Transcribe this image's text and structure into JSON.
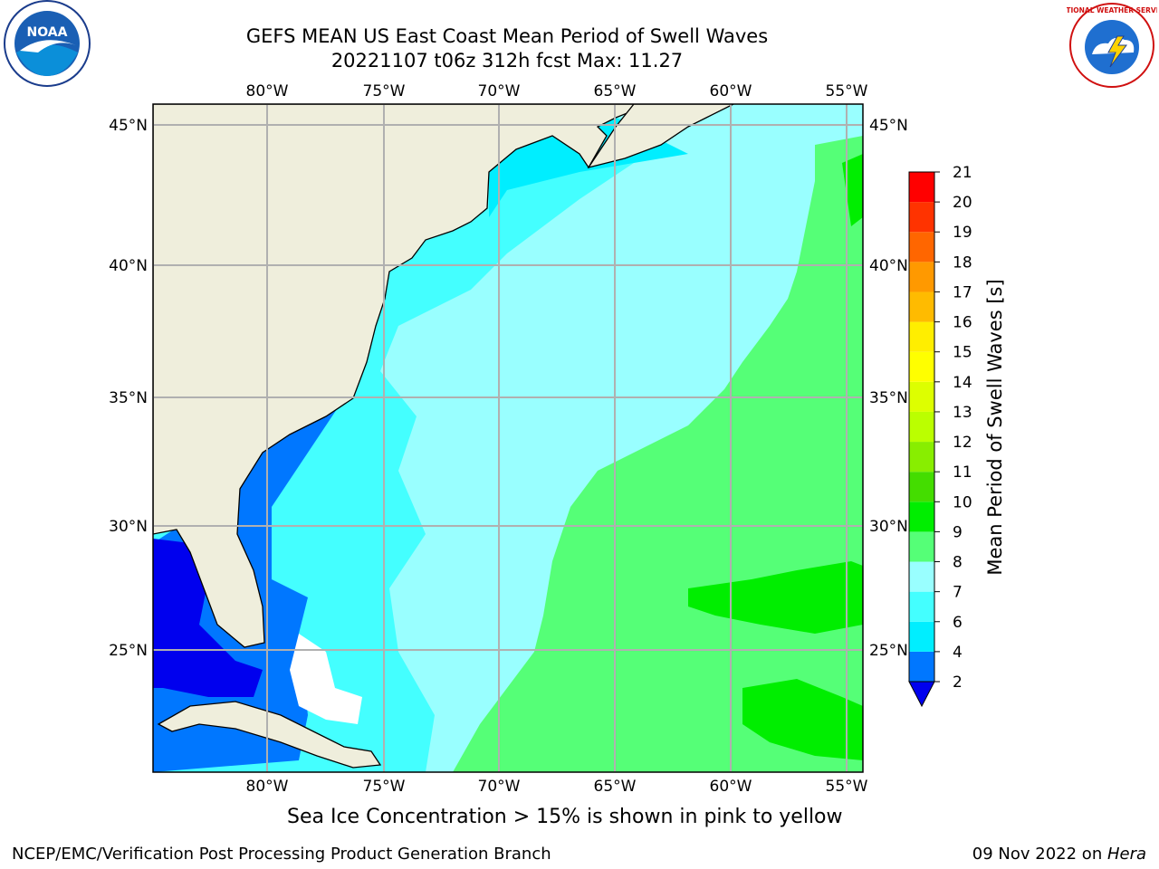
{
  "title": {
    "line1": "GEFS MEAN US East Coast Mean Period of Swell Waves",
    "line2": "20221107 t06z 312h fcst   Max: 11.27"
  },
  "logos": {
    "left": "noaa-logo",
    "right": "national-weather-service-logo",
    "left_text": "NOAA",
    "right_text": "NATIONAL WEATHER SERVICE"
  },
  "map": {
    "type": "contour-map",
    "lon_labels": [
      "80°W",
      "75°W",
      "70°W",
      "65°W",
      "60°W",
      "55°W"
    ],
    "lat_labels": [
      "45°N",
      "40°N",
      "35°N",
      "30°N",
      "25°N"
    ],
    "land_color": "#efeedc",
    "grid_color": "#b0b0b0"
  },
  "colorbar": {
    "label": "Mean Period of Swell Waves [s]",
    "ticks": [
      "2",
      "4",
      "6",
      "7",
      "8",
      "9",
      "10",
      "11",
      "12",
      "13",
      "14",
      "15",
      "16",
      "17",
      "18",
      "19",
      "20",
      "21"
    ],
    "colors": [
      "#0000ee",
      "#0077ff",
      "#00eeff",
      "#44ffff",
      "#99ffff",
      "#55ff77",
      "#00ee00",
      "#44dd00",
      "#88ee00",
      "#bbff00",
      "#ddff00",
      "#ffff00",
      "#ffee00",
      "#ffbb00",
      "#ff9900",
      "#ff6600",
      "#ff3300",
      "#ff0000"
    ]
  },
  "footer": {
    "sea_ice_note": "Sea Ice Concentration > 15% is shown in pink to yellow",
    "credit": "NCEP/EMC/Verification Post Processing Product Generation Branch",
    "date": "09 Nov 2022 on ",
    "machine": "Hera"
  }
}
